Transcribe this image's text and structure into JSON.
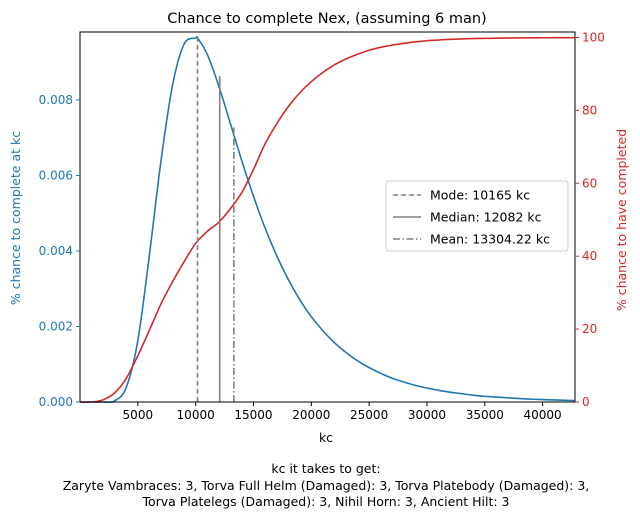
{
  "chart_data": {
    "type": "line",
    "title": "Chance to complete Nex, (assuming 6 man)",
    "xlabel": "kc",
    "ylabel_left": "% chance to complete at kc",
    "ylabel_right": "% chance to have completed",
    "xlim": [
      0,
      42800
    ],
    "ylim_left": [
      0,
      0.0098
    ],
    "ylim_right": [
      0,
      101.5
    ],
    "x_ticks": [
      5000,
      10000,
      15000,
      20000,
      25000,
      30000,
      35000,
      40000
    ],
    "y_left_ticks": [
      0.0,
      0.002,
      0.004,
      0.006,
      0.008
    ],
    "y_right_ticks": [
      0,
      20,
      40,
      60,
      80,
      100
    ],
    "grid": false,
    "legend_position": "center-right",
    "colors": {
      "pdf": "#1f77b4",
      "cdf": "#d62728",
      "markers": "#808080",
      "axis": "#000000"
    },
    "series": [
      {
        "axis": "left",
        "x": [
          0,
          1000,
          2000,
          3000,
          4000,
          5000,
          6000,
          7000,
          8000,
          9000,
          10000,
          10165,
          11000,
          12000,
          13000,
          14000,
          15000,
          16000,
          17000,
          18000,
          19000,
          20000,
          21000,
          22000,
          23000,
          24000,
          25000,
          26000,
          27000,
          28000,
          29000,
          30000,
          31000,
          32000,
          33000,
          34000,
          35000,
          36000,
          37000,
          38000,
          39000,
          40000,
          41000,
          42000,
          42800
        ],
        "y": [
          0,
          0,
          1.3e-07,
          2.92e-05,
          0.000389,
          0.00163,
          0.00389,
          0.00638,
          0.00839,
          0.00948,
          0.00964,
          0.00964,
          0.00921,
          0.00837,
          0.00738,
          0.00638,
          0.00545,
          0.00461,
          0.00388,
          0.00325,
          0.00271,
          0.00226,
          0.00189,
          0.00157,
          0.00131,
          0.00109,
          0.00091,
          0.00076,
          0.00063,
          0.00053,
          0.00044,
          0.00037,
          0.00031,
          0.00026,
          0.00022,
          0.00018,
          0.00015,
          0.00013,
          0.00011,
          9e-05,
          7.6e-05,
          6.4e-05,
          5.4e-05,
          4.5e-05,
          3.9e-05
        ]
      },
      {
        "axis": "right",
        "x": [
          0,
          1000,
          2000,
          3000,
          4000,
          5000,
          6000,
          7000,
          8000,
          9000,
          10000,
          11000,
          12000,
          13000,
          14000,
          15000,
          16000,
          17000,
          18000,
          19000,
          20000,
          21000,
          22000,
          23000,
          24000,
          25000,
          26000,
          27000,
          28000,
          29000,
          30000,
          31000,
          32000,
          33000,
          34000,
          35000,
          36000,
          37000,
          38000,
          39000,
          40000,
          41000,
          42000,
          42800
        ],
        "y": [
          0,
          0,
          0.6,
          2.5,
          6.5,
          12.7,
          19.7,
          26.9,
          33.0,
          38.5,
          43.5,
          46.8,
          49.3,
          53.0,
          57.5,
          63.8,
          70.8,
          76.3,
          81.0,
          84.8,
          87.9,
          90.4,
          92.5,
          94.1,
          95.4,
          96.5,
          97.3,
          97.9,
          98.4,
          98.8,
          99.1,
          99.3,
          99.5,
          99.6,
          99.7,
          99.75,
          99.8,
          99.85,
          99.88,
          99.9,
          99.92,
          99.93,
          99.94,
          99.95
        ]
      }
    ],
    "markers": [
      {
        "label": "Mode: 10165 kc",
        "x": 10165,
        "y_top": 0.00964,
        "style": "dashed"
      },
      {
        "label": "Median: 12082 kc",
        "x": 12082,
        "y_top": 0.00863,
        "style": "solid"
      },
      {
        "label": "Mean: 13304.22 kc",
        "x": 13304.22,
        "y_top": 0.00727,
        "style": "dashdot"
      }
    ]
  },
  "footer": {
    "line1": "kc it takes to get:",
    "line2": "Zaryte Vambraces: 3,  Torva Full Helm (Damaged): 3,  Torva Platebody (Damaged): 3,",
    "line3": "Torva Platelegs (Damaged): 3,  Nihil Horn: 3,  Ancient Hilt: 3"
  }
}
